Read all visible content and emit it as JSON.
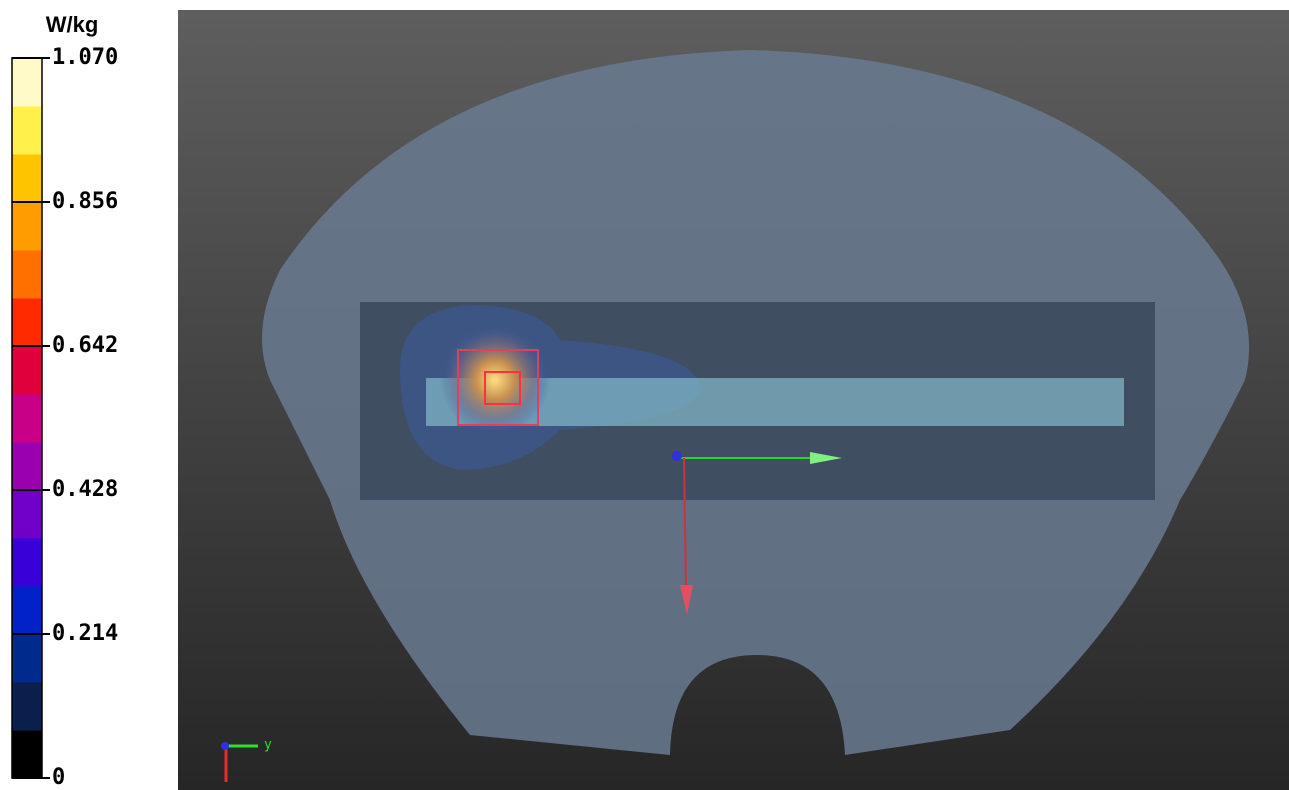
{
  "colorbar": {
    "unit": "W/kg",
    "ticks": [
      0,
      0.214,
      0.428,
      0.642,
      0.856,
      {
        "value": 1.07,
        "label": "1.070"
      }
    ],
    "colors": [
      "#000000",
      "#0a1f4c",
      "#002a8c",
      "#0022c8",
      "#3a00d8",
      "#7000c8",
      "#9a00b0",
      "#c80088",
      "#e0003c",
      "#ff2a00",
      "#ff7000",
      "#ff9c00",
      "#ffc400",
      "#fff04a",
      "#fffac8"
    ]
  },
  "axes_triad": {
    "y_label": "y"
  }
}
